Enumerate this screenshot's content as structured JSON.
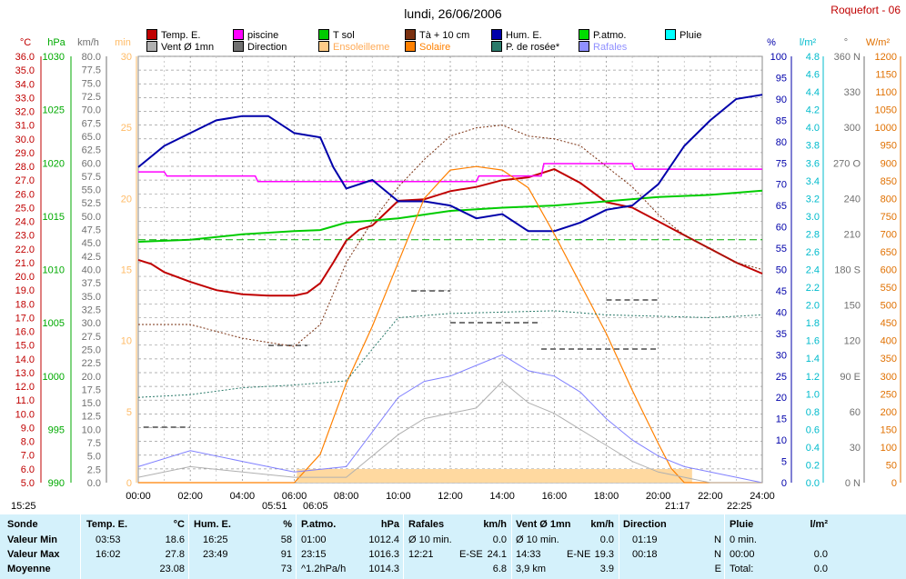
{
  "station": "Roquefort - 06",
  "title": "lundi, 26/06/2006",
  "legend": [
    {
      "label": "Temp. E.",
      "color": "#c00000"
    },
    {
      "label": "piscine",
      "color": "#ff00ff"
    },
    {
      "label": "T sol",
      "color": "#00cc00"
    },
    {
      "label": "Tà + 10 cm",
      "color": "#7a3010"
    },
    {
      "label": "Hum. E.",
      "color": "#0000aa"
    },
    {
      "label": "P.atmo.",
      "color": "#00dd00"
    },
    {
      "label": "Pluie",
      "color": "#00ffff"
    },
    {
      "label": "Vent Ø 1mn",
      "color": "#b0b0b0"
    },
    {
      "label": "Direction",
      "color": "#707070"
    },
    {
      "label": "Ensoleilleme",
      "color": "#ffcc88"
    },
    {
      "label": "Solaire",
      "color": "#ff8000"
    },
    {
      "label": "P. de rosée*",
      "color": "#2a7a6a"
    },
    {
      "label": "Rafales",
      "color": "#9090ff"
    }
  ],
  "axes": {
    "units": {
      "temp": "°C",
      "pres": "hPa",
      "wind": "km/h",
      "min": "min",
      "hum": "%",
      "rain": "l/m²",
      "dir": "°",
      "solar": "W/m²"
    },
    "temp_ticks": [
      "36.0",
      "35.0",
      "34.0",
      "33.0",
      "32.0",
      "31.0",
      "30.0",
      "29.0",
      "28.0",
      "27.0",
      "26.0",
      "25.0",
      "24.0",
      "23.0",
      "22.0",
      "21.0",
      "20.0",
      "19.0",
      "18.0",
      "17.0",
      "16.0",
      "15.0",
      "14.0",
      "13.0",
      "12.0",
      "11.0",
      "10.0",
      "9.0",
      "8.0",
      "7.0",
      "6.0",
      "5.0"
    ],
    "pres_ticks": [
      "1030",
      "1025",
      "1020",
      "1015",
      "1010",
      "1005",
      "1000",
      "995",
      "990"
    ],
    "wind_ticks": [
      "80.0",
      "77.5",
      "75.0",
      "72.5",
      "70.0",
      "67.5",
      "65.0",
      "62.5",
      "60.0",
      "57.5",
      "55.0",
      "52.5",
      "50.0",
      "47.5",
      "45.0",
      "42.5",
      "40.0",
      "37.5",
      "35.0",
      "32.5",
      "30.0",
      "27.5",
      "25.0",
      "22.5",
      "20.0",
      "17.5",
      "15.0",
      "12.5",
      "10.0",
      "7.5",
      "5.0",
      "2.5",
      "0.0"
    ],
    "min_ticks": [
      "30",
      "25",
      "20",
      "15",
      "10",
      "5",
      "0"
    ],
    "hum_ticks": [
      "100",
      "95",
      "90",
      "85",
      "80",
      "75",
      "70",
      "65",
      "60",
      "55",
      "50",
      "45",
      "40",
      "35",
      "30",
      "25",
      "20",
      "15",
      "10",
      "5",
      "0"
    ],
    "rain_ticks": [
      "4.8",
      "4.6",
      "4.4",
      "4.2",
      "4.0",
      "3.8",
      "3.6",
      "3.4",
      "3.2",
      "3.0",
      "2.8",
      "2.6",
      "2.4",
      "2.2",
      "2.0",
      "1.8",
      "1.6",
      "1.4",
      "1.2",
      "1.0",
      "0.8",
      "0.6",
      "0.4",
      "0.2",
      "0.0"
    ],
    "dir_ticks": [
      "360 N",
      "330",
      "300",
      "270 O",
      "240",
      "210",
      "180 S",
      "150",
      "120",
      "90 E",
      "60",
      "30",
      "0 N"
    ],
    "solar_ticks": [
      "1200",
      "1150",
      "1100",
      "1050",
      "1000",
      "950",
      "900",
      "850",
      "800",
      "750",
      "700",
      "650",
      "600",
      "550",
      "500",
      "450",
      "400",
      "350",
      "300",
      "250",
      "200",
      "150",
      "100",
      "50",
      "0"
    ],
    "time_ticks": [
      "00:00",
      "02:00",
      "04:00",
      "06:00",
      "08:00",
      "10:00",
      "12:00",
      "14:00",
      "16:00",
      "18:00",
      "20:00",
      "22:00",
      "24:00"
    ]
  },
  "sun_times": {
    "a": "15:25",
    "sunrise": "05:51",
    "sunrise2": "06:05",
    "sunset": "21:17",
    "b": "22:25"
  },
  "chart_data": {
    "type": "line",
    "title": "lundi, 26/06/2006",
    "x_unit": "hour",
    "x_range": [
      0,
      24
    ],
    "series": [
      {
        "name": "Temp. E.",
        "axis": "°C",
        "x": [
          0,
          0.5,
          1,
          2,
          3,
          4,
          5,
          6,
          6.5,
          7,
          7.5,
          8,
          8.5,
          9,
          10,
          11,
          12,
          13,
          14,
          15,
          16,
          17,
          18,
          19,
          20,
          20.5,
          21,
          22,
          23,
          24
        ],
        "values": [
          21.2,
          20.9,
          20.3,
          19.6,
          19.0,
          18.7,
          18.6,
          18.6,
          18.8,
          19.5,
          21.0,
          22.6,
          23.4,
          23.7,
          25.5,
          25.6,
          26.2,
          26.5,
          27.0,
          27.2,
          27.8,
          26.8,
          25.4,
          25.0,
          24.0,
          23.5,
          23.0,
          22.0,
          21.0,
          20.2
        ]
      },
      {
        "name": "piscine",
        "axis": "°C",
        "x": [
          0,
          1,
          1.1,
          4.5,
          4.6,
          13,
          13.1,
          15.5,
          15.6,
          19,
          19.1,
          24
        ],
        "values": [
          27.6,
          27.6,
          27.3,
          27.3,
          26.9,
          26.9,
          27.3,
          27.3,
          28.2,
          28.2,
          27.8,
          27.8
        ]
      },
      {
        "name": "T sol",
        "axis": "hPa",
        "x": [
          0,
          2,
          4,
          6,
          7,
          8,
          10,
          12,
          14,
          16,
          18,
          20,
          22,
          24
        ],
        "values": [
          1012.6,
          1012.8,
          1013.3,
          1013.6,
          1013.7,
          1014.4,
          1014.8,
          1015.5,
          1015.8,
          1016.0,
          1016.4,
          1016.8,
          1017.0,
          1017.4
        ]
      },
      {
        "name": "Tà + 10 cm",
        "axis": "°C",
        "x": [
          0,
          2,
          4,
          6,
          7,
          8,
          9,
          10,
          11,
          12,
          13,
          14,
          15,
          16,
          17,
          18,
          19,
          20,
          21,
          22,
          23,
          24
        ],
        "values": [
          16.5,
          16.5,
          15.5,
          14.9,
          16.5,
          21.0,
          24.0,
          26.5,
          28.5,
          30.2,
          30.8,
          31.0,
          30.2,
          30.0,
          29.5,
          28.0,
          26.5,
          24.5,
          23.0,
          22.0,
          21.0,
          20.5
        ]
      },
      {
        "name": "Hum. E.",
        "axis": "%",
        "x": [
          0,
          1,
          2,
          3,
          4,
          5,
          6,
          7,
          7.5,
          8,
          9,
          10,
          11,
          12,
          13,
          14,
          15,
          16,
          17,
          18,
          19,
          20,
          21,
          22,
          23,
          24
        ],
        "values": [
          74,
          79,
          82,
          85,
          86,
          86,
          82,
          81,
          74,
          69,
          71,
          66,
          66,
          65,
          62,
          63,
          59,
          59,
          61,
          64,
          65,
          70,
          79,
          85,
          90,
          91
        ]
      },
      {
        "name": "P.atmo.",
        "axis": "hPa",
        "x": [
          0,
          24
        ],
        "values": [
          1012.8,
          1012.8
        ]
      },
      {
        "name": "Solaire",
        "axis": "W/m²",
        "x": [
          0,
          6,
          7,
          8,
          9,
          10,
          11,
          12,
          13,
          14,
          15,
          16,
          17,
          18,
          19,
          20,
          20.5,
          21,
          24
        ],
        "values": [
          0,
          0,
          80,
          280,
          440,
          620,
          800,
          880,
          890,
          880,
          830,
          700,
          560,
          420,
          260,
          110,
          40,
          0,
          0
        ]
      },
      {
        "name": "P. de rosée*",
        "axis": "°C",
        "x": [
          0,
          2,
          4,
          6,
          8,
          10,
          12,
          14,
          16,
          18,
          20,
          22,
          24
        ],
        "values": [
          11.2,
          11.4,
          11.9,
          12.1,
          12.4,
          17.0,
          17.3,
          17.4,
          17.5,
          17.2,
          17.1,
          17.0,
          17.2
        ]
      },
      {
        "name": "Rafales",
        "axis": "km/h",
        "x": [
          0,
          2,
          4,
          6,
          8,
          10,
          11,
          12,
          13,
          14,
          15,
          16,
          17,
          18,
          19,
          20,
          21,
          22,
          23,
          24
        ],
        "values": [
          3,
          6,
          4,
          2,
          3,
          16,
          19,
          20,
          22,
          24,
          21,
          20,
          17,
          12,
          8,
          5,
          3,
          2,
          1,
          0
        ]
      },
      {
        "name": "Vent Ø 1mn",
        "axis": "km/h",
        "x": [
          0,
          2,
          4,
          6,
          8,
          10,
          11,
          12,
          13,
          14,
          15,
          16,
          17,
          18,
          19,
          20,
          21,
          22,
          24
        ],
        "values": [
          1,
          3,
          2,
          1,
          1,
          9,
          12,
          13,
          14,
          19,
          15,
          13,
          10,
          7,
          4,
          2,
          1,
          0,
          0
        ]
      }
    ]
  },
  "stats": {
    "headers": {
      "sonde": "Sonde",
      "temp": "Temp. E.",
      "temp_u": "°C",
      "hum": "Hum. E.",
      "hum_u": "%",
      "pres": "P.atmo.",
      "pres_u": "hPa",
      "gust": "Rafales",
      "gust_u": "km/h",
      "wind": "Vent Ø 1mn",
      "wind_u": "km/h",
      "dir": "Direction",
      "rain": "Pluie",
      "rain_u": "l/m²"
    },
    "rows": [
      {
        "label": "Valeur Min",
        "temp_t": "03:53",
        "temp_v": "18.6",
        "hum_t": "16:25",
        "hum_v": "58",
        "pres_t": "01:00",
        "pres_v": "1012.4",
        "gust_t": "Ø 10 min.",
        "gust_v": "0.0",
        "wind_t": "Ø 10 min.",
        "wind_v": "0.0",
        "dir_t": "01:19",
        "dir_v": "N",
        "rain_t": "0 min.",
        "rain_v": ""
      },
      {
        "label": "Valeur Max",
        "temp_t": "16:02",
        "temp_v": "27.8",
        "hum_t": "23:49",
        "hum_v": "91",
        "pres_t": "23:15",
        "pres_v": "1016.3",
        "gust_t": "12:21",
        "gust_d": "E-SE",
        "gust_v": "24.1",
        "wind_t": "14:33",
        "wind_d": "E-NE",
        "wind_v": "19.3",
        "dir_t": "00:18",
        "dir_v": "N",
        "rain_t": "00:00",
        "rain_v": "0.0"
      },
      {
        "label": "Moyenne",
        "temp_t": "",
        "temp_v": "23.08",
        "hum_t": "",
        "hum_v": "73",
        "pres_t": "^1.2hPa/h",
        "pres_v": "1014.3",
        "gust_t": "",
        "gust_v": "6.8",
        "wind_t": "3,9 km",
        "wind_v": "3.9",
        "dir_t": "",
        "dir_v": "E",
        "rain_t": "Total:",
        "rain_v": "0.0"
      }
    ]
  }
}
